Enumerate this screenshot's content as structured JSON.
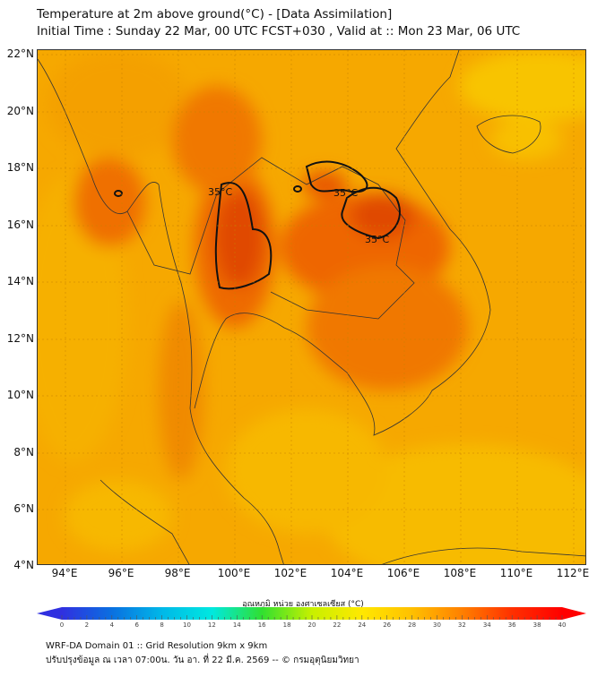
{
  "header": {
    "title": "Temperature at 2m above ground(°C) - [Data Assimilation]",
    "subtitle": "Initial Time : Sunday 22 Mar, 00 UTC FCST+030 , Valid at :: Mon 23 Mar, 06 UTC"
  },
  "map": {
    "lat_labels": [
      "22°N",
      "20°N",
      "18°N",
      "16°N",
      "14°N",
      "12°N",
      "10°N",
      "8°N",
      "6°N",
      "4°N"
    ],
    "lon_labels": [
      "94°E",
      "96°E",
      "98°E",
      "100°E",
      "102°E",
      "104°E",
      "106°E",
      "108°E",
      "110°E",
      "112°E"
    ],
    "contour_labels": [
      "35°C",
      "35°C",
      "35°C"
    ]
  },
  "colorbar": {
    "title": "อุณหภูมิ หน่วย องศาเซลเซียส (°C)",
    "ticks": [
      "0",
      "2",
      "4",
      "6",
      "8",
      "10",
      "12",
      "14",
      "16",
      "18",
      "20",
      "22",
      "24",
      "26",
      "28",
      "30",
      "32",
      "34",
      "36",
      "38",
      "40"
    ],
    "colors": [
      "#3030e0",
      "#0a70e0",
      "#00b8e8",
      "#00e8e0",
      "#30e030",
      "#c8f000",
      "#ffe800",
      "#ffc000",
      "#ff8000",
      "#ff3000",
      "#ff0000"
    ]
  },
  "footer": {
    "line1": "WRF-DA Domain 01 :: Grid Resolution 9km x 9km",
    "line2": "ปรับปรุงข้อมูล ณ เวลา 07:00น. วัน อา. ที่ 22 มี.ค. 2569 -- © กรมอุตุนิยมวิทยา"
  }
}
